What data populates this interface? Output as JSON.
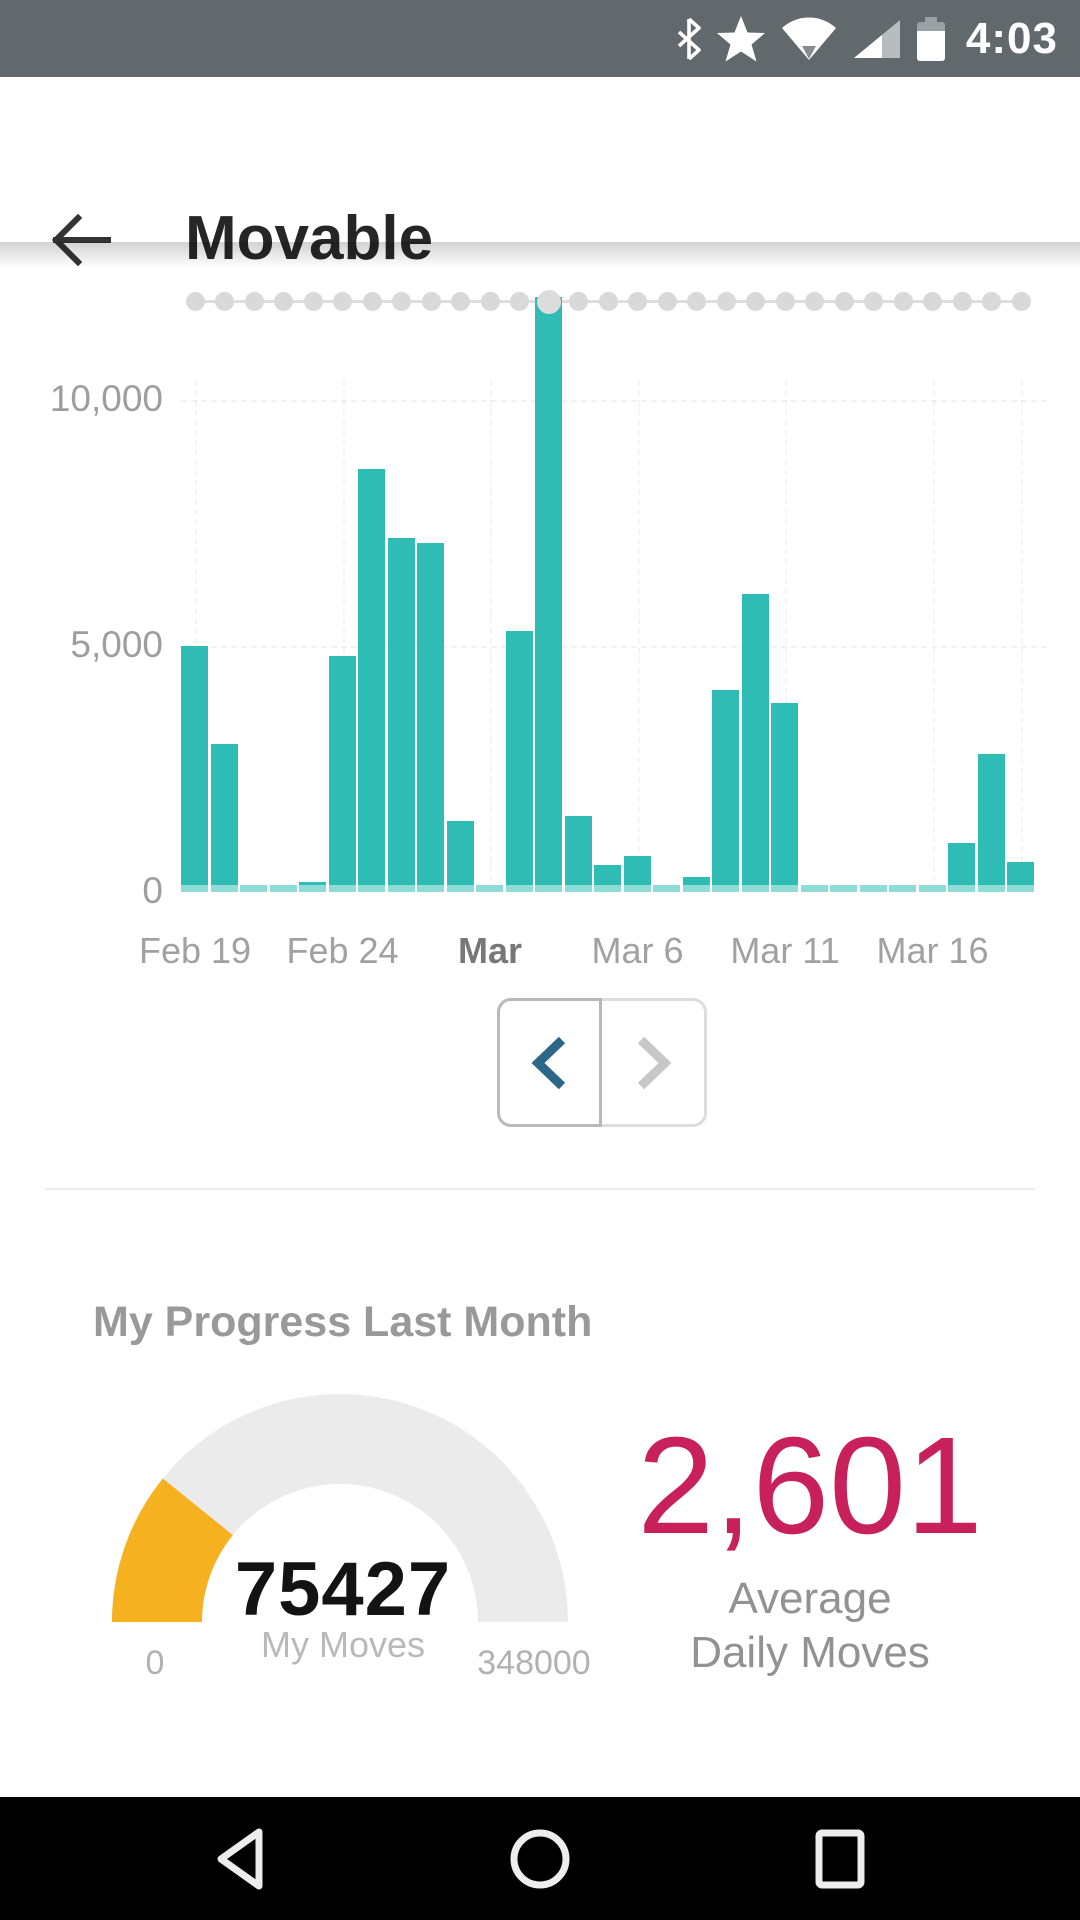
{
  "status_bar": {
    "time": "4:03",
    "bg_color": "#62696c",
    "icons": [
      "bluetooth-icon",
      "star-icon",
      "wifi-icon",
      "cell-signal-icon",
      "battery-icon"
    ]
  },
  "header": {
    "title": "Movable",
    "back_icon": "arrow-left-icon"
  },
  "chart_data": {
    "type": "bar",
    "title": "Daily moves bar chart",
    "bar_color": "#2fbcb4",
    "bar_cap_color": "#8edcd7",
    "categories": [
      "Feb 19",
      "Feb 20",
      "Feb 21",
      "Feb 22",
      "Feb 23",
      "Feb 24",
      "Feb 25",
      "Feb 26",
      "Feb 27",
      "Feb 28",
      "Mar 1",
      "Mar 2",
      "Mar 3",
      "Mar 4",
      "Mar 5",
      "Mar 6",
      "Mar 7",
      "Mar 8",
      "Mar 9",
      "Mar 10",
      "Mar 11",
      "Mar 12",
      "Mar 13",
      "Mar 14",
      "Mar 15",
      "Mar 16",
      "Mar 17",
      "Mar 18",
      "Mar 19"
    ],
    "values": [
      5000,
      3000,
      150,
      150,
      200,
      4800,
      8600,
      7200,
      7100,
      1450,
      120,
      5300,
      12100,
      1550,
      550,
      730,
      130,
      310,
      4100,
      6050,
      3850,
      150,
      120,
      100,
      100,
      120,
      1000,
      2800,
      600
    ],
    "ylim": [
      0,
      12500
    ],
    "y_ticks": [
      {
        "label": "0",
        "value": 0
      },
      {
        "label": "5,000",
        "value": 5000
      },
      {
        "label": "10,000",
        "value": 10000
      }
    ],
    "x_ticks": [
      {
        "label": "Feb 19",
        "index": 0,
        "bold": false
      },
      {
        "label": "Feb 24",
        "index": 5,
        "bold": false
      },
      {
        "label": "Mar",
        "index": 10,
        "bold": true
      },
      {
        "label": "Mar 6",
        "index": 15,
        "bold": false
      },
      {
        "label": "Mar 11",
        "index": 20,
        "bold": false
      },
      {
        "label": "Mar 16",
        "index": 25,
        "bold": false
      },
      {
        "label": "",
        "index": 28,
        "bold": false
      }
    ],
    "goal_line": {
      "value": 12000,
      "style": "dotted",
      "dot_color": "#d9d9d9",
      "highlight_index": 12
    },
    "legend": null,
    "grid": "faint"
  },
  "pager": {
    "prev_icon": "chevron-left-icon",
    "next_icon": "chevron-right-icon",
    "prev_color": "#2d6787",
    "next_color": "#c7c7c7"
  },
  "progress": {
    "heading": "My Progress Last Month",
    "gauge": {
      "value": 75427,
      "value_label": "75427",
      "caption": "My Moves",
      "min": 0,
      "max": 348000,
      "min_label": "0",
      "max_label": "348000",
      "track_color": "#ebebeb",
      "fill_color": "#f5b120"
    },
    "average": {
      "value_label": "2,601",
      "color": "#c8205a",
      "label_line1": "Average",
      "label_line2": "Daily Moves"
    }
  },
  "nav_bar": {
    "icons": [
      "back-triangle-icon",
      "home-circle-icon",
      "recents-square-icon"
    ]
  }
}
